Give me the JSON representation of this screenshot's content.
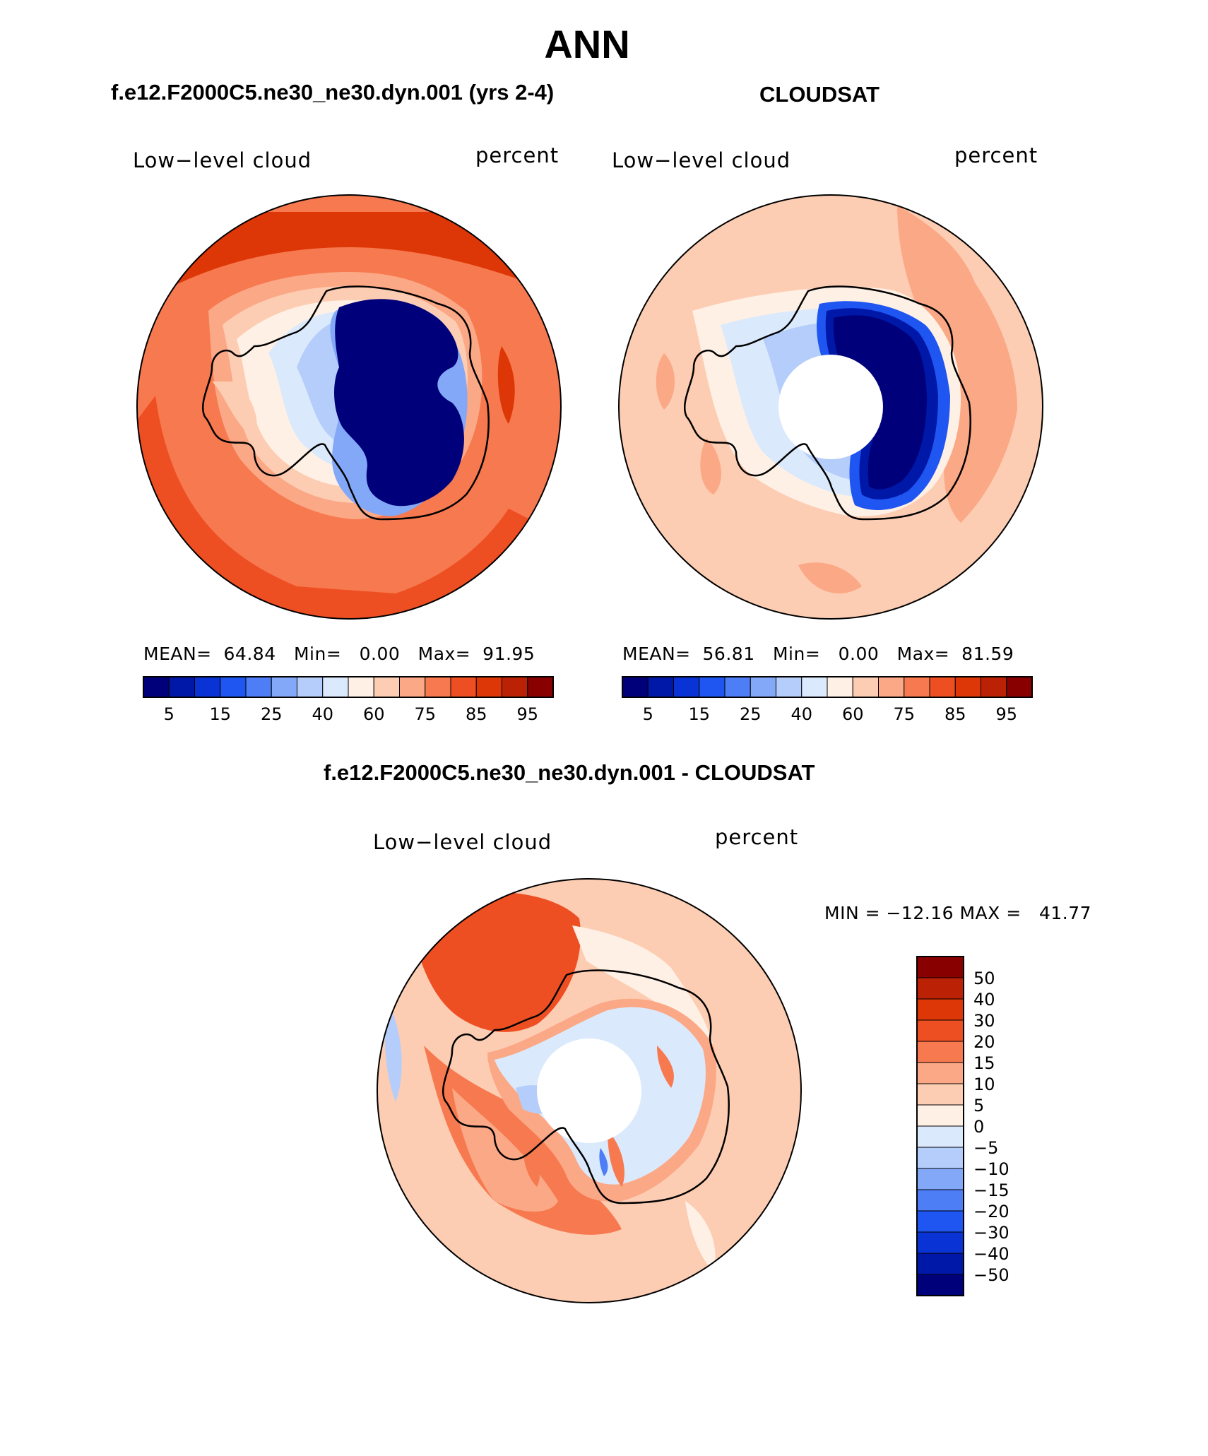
{
  "page": {
    "title": "ANN"
  },
  "panels": [
    {
      "title": "f.e12.F2000C5.ne30_ne30.dyn.001 (yrs 2-4)",
      "left_label": "Low−level cloud",
      "units": "percent",
      "stats": {
        "mean_label": "MEAN=",
        "mean": "64.84",
        "min_label": "Min=",
        "min": "0.00",
        "max_label": "Max=",
        "max": "91.95"
      }
    },
    {
      "title": "CLOUDSAT",
      "left_label": "Low−level cloud",
      "units": "percent",
      "stats": {
        "mean_label": "MEAN=",
        "mean": "56.81",
        "min_label": "Min=",
        "min": "0.00",
        "max_label": "Max=",
        "max": "81.59"
      }
    },
    {
      "title": "f.e12.F2000C5.ne30_ne30.dyn.001 - CLOUDSAT",
      "left_label": "Low−level cloud",
      "units": "percent",
      "minmax": "MIN = −12.16 MAX =   41.77"
    }
  ],
  "colorbar_abs": {
    "colors": [
      "#00007a",
      "#0018a8",
      "#0a33d6",
      "#1f55f0",
      "#4d7ef5",
      "#82a8f7",
      "#b5cdfa",
      "#dbe9fc",
      "#fff0e5",
      "#fdcdb3",
      "#fba886",
      "#f7794f",
      "#ee4f22",
      "#dd3707",
      "#bb2205",
      "#880000"
    ],
    "tick_labels": [
      "5",
      "15",
      "25",
      "40",
      "60",
      "75",
      "85",
      "95"
    ]
  },
  "colorbar_diff": {
    "colors": [
      "#00007a",
      "#0018a8",
      "#0a33d6",
      "#1f55f0",
      "#4d7ef5",
      "#82a8f7",
      "#b5cdfa",
      "#dbe9fc",
      "#fff0e5",
      "#fdcdb3",
      "#fba886",
      "#f7794f",
      "#ee4f22",
      "#dd3707",
      "#bb2205",
      "#880000"
    ],
    "tick_labels": [
      "50",
      "40",
      "30",
      "20",
      "15",
      "10",
      "5",
      "0",
      "−5",
      "−10",
      "−15",
      "−20",
      "−30",
      "−40",
      "−50"
    ]
  }
}
